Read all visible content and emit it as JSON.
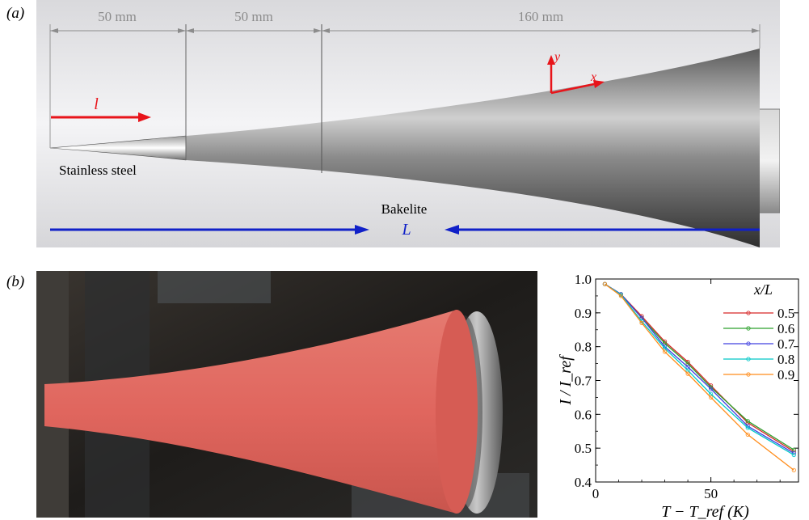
{
  "figure": {
    "panel_a": {
      "label": "(a)",
      "dimensions": [
        "50 mm",
        "50 mm",
        "160 mm"
      ],
      "arrow_l": "l",
      "axis_y": "y",
      "axis_x": "x",
      "material_1": "Stainless steel",
      "material_2": "Bakelite",
      "length_symbol": "L",
      "colors": {
        "annotation_red": "#e8141a",
        "annotation_blue": "#1020c8",
        "dimension_gray": "#8c8c8c"
      }
    },
    "panel_b": {
      "label": "(b)",
      "photo_color": "#e0665e"
    }
  },
  "chart_data": {
    "type": "line",
    "ylabel": "I / I_ref",
    "xlabel": "T − T_ref (K)",
    "xlim": [
      0,
      88
    ],
    "ylim": [
      0.4,
      1.0
    ],
    "x_ticks": [
      0,
      50
    ],
    "y_ticks": [
      0.4,
      0.5,
      0.6,
      0.7,
      0.8,
      0.9,
      1.0
    ],
    "legend_title": "x/L",
    "legend_position": "top-right",
    "x": [
      4,
      11,
      20,
      30,
      40,
      50,
      66,
      86
    ],
    "series": [
      {
        "name": "0.5",
        "color": "#d62728",
        "values": [
          0.985,
          0.955,
          0.89,
          0.815,
          0.755,
          0.685,
          0.575,
          0.49
        ]
      },
      {
        "name": "0.6",
        "color": "#2ca02c",
        "values": [
          0.985,
          0.955,
          0.885,
          0.81,
          0.75,
          0.68,
          0.58,
          0.495
        ]
      },
      {
        "name": "0.7",
        "color": "#4040e0",
        "values": [
          0.985,
          0.955,
          0.885,
          0.8,
          0.74,
          0.675,
          0.565,
          0.485
        ]
      },
      {
        "name": "0.8",
        "color": "#00c8c8",
        "values": [
          0.985,
          0.953,
          0.875,
          0.795,
          0.73,
          0.66,
          0.56,
          0.48
        ]
      },
      {
        "name": "0.9",
        "color": "#ff8c1a",
        "values": [
          0.985,
          0.95,
          0.87,
          0.785,
          0.72,
          0.65,
          0.54,
          0.435
        ]
      }
    ]
  }
}
